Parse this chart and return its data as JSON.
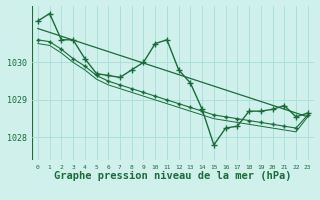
{
  "background_color": "#cff0eb",
  "grid_color": "#a8ddd8",
  "line_color": "#1a6b3a",
  "xlabel": "Graphe pression niveau de la mer (hPa)",
  "xlabel_fontsize": 7.5,
  "ylabel_ticks": [
    1028,
    1029,
    1030
  ],
  "xlim": [
    -0.5,
    23.5
  ],
  "ylim": [
    1027.4,
    1031.5
  ],
  "xticks": [
    0,
    1,
    2,
    3,
    4,
    5,
    6,
    7,
    8,
    9,
    10,
    11,
    12,
    13,
    14,
    15,
    16,
    17,
    18,
    19,
    20,
    21,
    22,
    23
  ],
  "series": [
    {
      "x": [
        0,
        1,
        2,
        3,
        4,
        5,
        6,
        7,
        8,
        9,
        10,
        11,
        12,
        13,
        14,
        15,
        16,
        17,
        18,
        19,
        20,
        21,
        22,
        23
      ],
      "y": [
        1031.1,
        1031.3,
        1030.6,
        1030.6,
        1030.1,
        1029.7,
        1029.65,
        1029.6,
        1029.8,
        1030.0,
        1030.5,
        1030.6,
        1029.8,
        1029.45,
        1028.75,
        1027.8,
        1028.25,
        1028.3,
        1028.7,
        1028.7,
        1028.75,
        1028.85,
        1028.55,
        1028.65
      ],
      "marker": "+",
      "markersize": 4,
      "linewidth": 1.0,
      "zorder": 5
    },
    {
      "x": [
        0,
        1,
        2,
        3,
        4,
        5,
        6,
        7,
        8,
        9,
        10,
        11,
        12,
        13,
        14,
        15,
        16,
        17,
        18,
        19,
        20,
        21,
        22,
        23
      ],
      "y": [
        1030.6,
        1030.55,
        1030.35,
        1030.1,
        1029.9,
        1029.65,
        1029.5,
        1029.4,
        1029.3,
        1029.2,
        1029.1,
        1029.0,
        1028.9,
        1028.8,
        1028.7,
        1028.6,
        1028.55,
        1028.5,
        1028.45,
        1028.4,
        1028.35,
        1028.3,
        1028.25,
        1028.6
      ],
      "marker": "+",
      "markersize": 3,
      "linewidth": 0.8,
      "zorder": 4
    },
    {
      "x": [
        0,
        1,
        2,
        3,
        4,
        5,
        6,
        7,
        8,
        9,
        10,
        11,
        12,
        13,
        14,
        15,
        16,
        17,
        18,
        19,
        20,
        21,
        22,
        23
      ],
      "y": [
        1030.5,
        1030.45,
        1030.25,
        1030.0,
        1029.8,
        1029.55,
        1029.4,
        1029.3,
        1029.2,
        1029.1,
        1029.0,
        1028.9,
        1028.8,
        1028.7,
        1028.6,
        1028.5,
        1028.45,
        1028.4,
        1028.35,
        1028.3,
        1028.25,
        1028.2,
        1028.15,
        1028.55
      ],
      "marker": null,
      "markersize": 0,
      "linewidth": 0.7,
      "zorder": 3
    },
    {
      "x": [
        0,
        23
      ],
      "y": [
        1030.9,
        1028.55
      ],
      "marker": null,
      "markersize": 0,
      "linewidth": 0.9,
      "zorder": 2
    }
  ]
}
